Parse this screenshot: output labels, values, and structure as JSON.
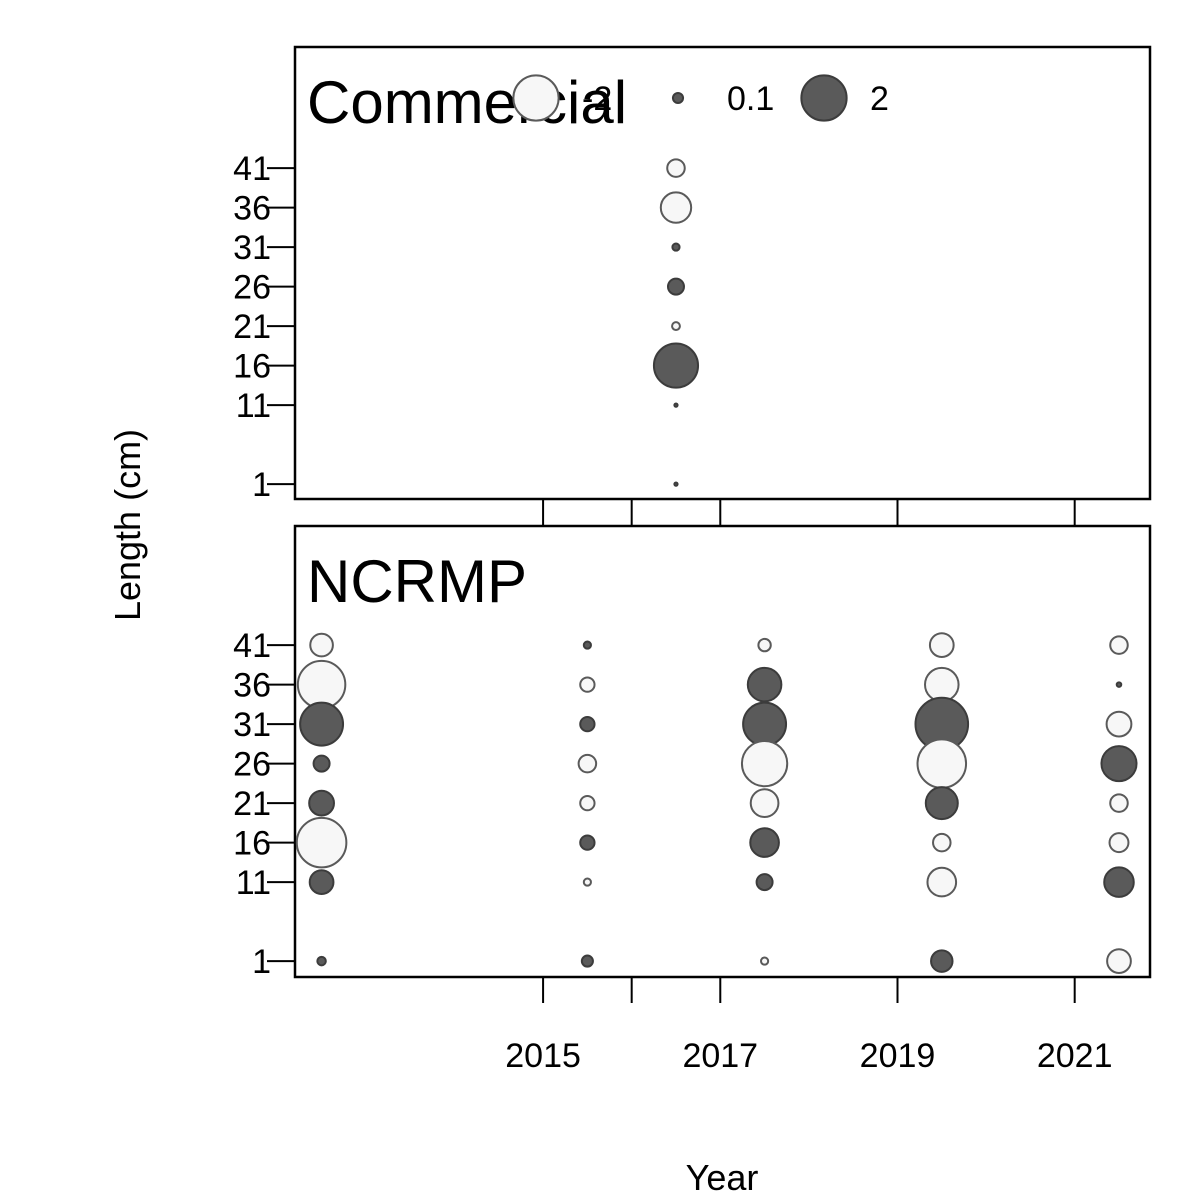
{
  "chart_data": {
    "type": "scatter",
    "subtype": "bubble-residuals",
    "xlabel": "Year",
    "ylabel": "Length (cm)",
    "x_ticks": [
      2015,
      2017,
      2019,
      2021
    ],
    "y_ticks": [
      1,
      11,
      16,
      21,
      26,
      31,
      36,
      41
    ],
    "xlim": [
      2012.2,
      2021.85
    ],
    "ylim": [
      -2.5,
      52
    ],
    "legend": {
      "placement": "top",
      "entries": [
        {
          "label": "-2",
          "value": -2
        },
        {
          "label": "0.1",
          "value": 0.1
        },
        {
          "label": "2",
          "value": 2
        }
      ]
    },
    "colors": {
      "positive": "#5a5a5a",
      "negative": "#f7f7f7"
    },
    "panels": [
      {
        "title": "Commercial",
        "points": [
          {
            "year": 2016.5,
            "length": 41,
            "value": -0.3
          },
          {
            "year": 2016.5,
            "length": 36,
            "value": -0.9
          },
          {
            "year": 2016.5,
            "length": 31,
            "value": 0.05
          },
          {
            "year": 2016.5,
            "length": 26,
            "value": 0.25
          },
          {
            "year": 2016.5,
            "length": 21,
            "value": -0.06
          },
          {
            "year": 2016.5,
            "length": 16,
            "value": 1.9
          },
          {
            "year": 2016.5,
            "length": 11,
            "value": 0.01
          },
          {
            "year": 2016.5,
            "length": 1,
            "value": 0.01
          }
        ]
      },
      {
        "title": "NCRMP",
        "points": [
          {
            "year": 2012.5,
            "length": 41,
            "value": -0.5
          },
          {
            "year": 2012.5,
            "length": 36,
            "value": -2.2
          },
          {
            "year": 2012.5,
            "length": 31,
            "value": 1.8
          },
          {
            "year": 2012.5,
            "length": 26,
            "value": 0.25
          },
          {
            "year": 2012.5,
            "length": 21,
            "value": 0.6
          },
          {
            "year": 2012.5,
            "length": 16,
            "value": -2.4
          },
          {
            "year": 2012.5,
            "length": 11,
            "value": 0.55
          },
          {
            "year": 2012.5,
            "length": 1,
            "value": 0.07
          },
          {
            "year": 2015.5,
            "length": 41,
            "value": 0.05
          },
          {
            "year": 2015.5,
            "length": 36,
            "value": -0.2
          },
          {
            "year": 2015.5,
            "length": 31,
            "value": 0.2
          },
          {
            "year": 2015.5,
            "length": 26,
            "value": -0.3
          },
          {
            "year": 2015.5,
            "length": 21,
            "value": -0.2
          },
          {
            "year": 2015.5,
            "length": 16,
            "value": 0.2
          },
          {
            "year": 2015.5,
            "length": 11,
            "value": -0.05
          },
          {
            "year": 2015.5,
            "length": 1,
            "value": 0.12
          },
          {
            "year": 2017.5,
            "length": 41,
            "value": -0.15
          },
          {
            "year": 2017.5,
            "length": 36,
            "value": 1.1
          },
          {
            "year": 2017.5,
            "length": 31,
            "value": 1.8
          },
          {
            "year": 2017.5,
            "length": 26,
            "value": -2.0
          },
          {
            "year": 2017.5,
            "length": 21,
            "value": -0.75
          },
          {
            "year": 2017.5,
            "length": 16,
            "value": 0.8
          },
          {
            "year": 2017.5,
            "length": 11,
            "value": 0.25
          },
          {
            "year": 2017.5,
            "length": 1,
            "value": -0.05
          },
          {
            "year": 2019.5,
            "length": 41,
            "value": -0.55
          },
          {
            "year": 2019.5,
            "length": 36,
            "value": -1.1
          },
          {
            "year": 2019.5,
            "length": 31,
            "value": 2.7
          },
          {
            "year": 2019.5,
            "length": 26,
            "value": -2.3
          },
          {
            "year": 2019.5,
            "length": 21,
            "value": 1.0
          },
          {
            "year": 2019.5,
            "length": 16,
            "value": -0.3
          },
          {
            "year": 2019.5,
            "length": 11,
            "value": -0.8
          },
          {
            "year": 2019.5,
            "length": 1,
            "value": 0.45
          },
          {
            "year": 2021.5,
            "length": 41,
            "value": -0.3
          },
          {
            "year": 2021.5,
            "length": 36,
            "value": 0.02
          },
          {
            "year": 2021.5,
            "length": 31,
            "value": -0.6
          },
          {
            "year": 2021.5,
            "length": 26,
            "value": 1.2
          },
          {
            "year": 2021.5,
            "length": 21,
            "value": -0.3
          },
          {
            "year": 2021.5,
            "length": 16,
            "value": -0.35
          },
          {
            "year": 2021.5,
            "length": 11,
            "value": 0.85
          },
          {
            "year": 2021.5,
            "length": 1,
            "value": -0.55
          }
        ]
      }
    ]
  }
}
